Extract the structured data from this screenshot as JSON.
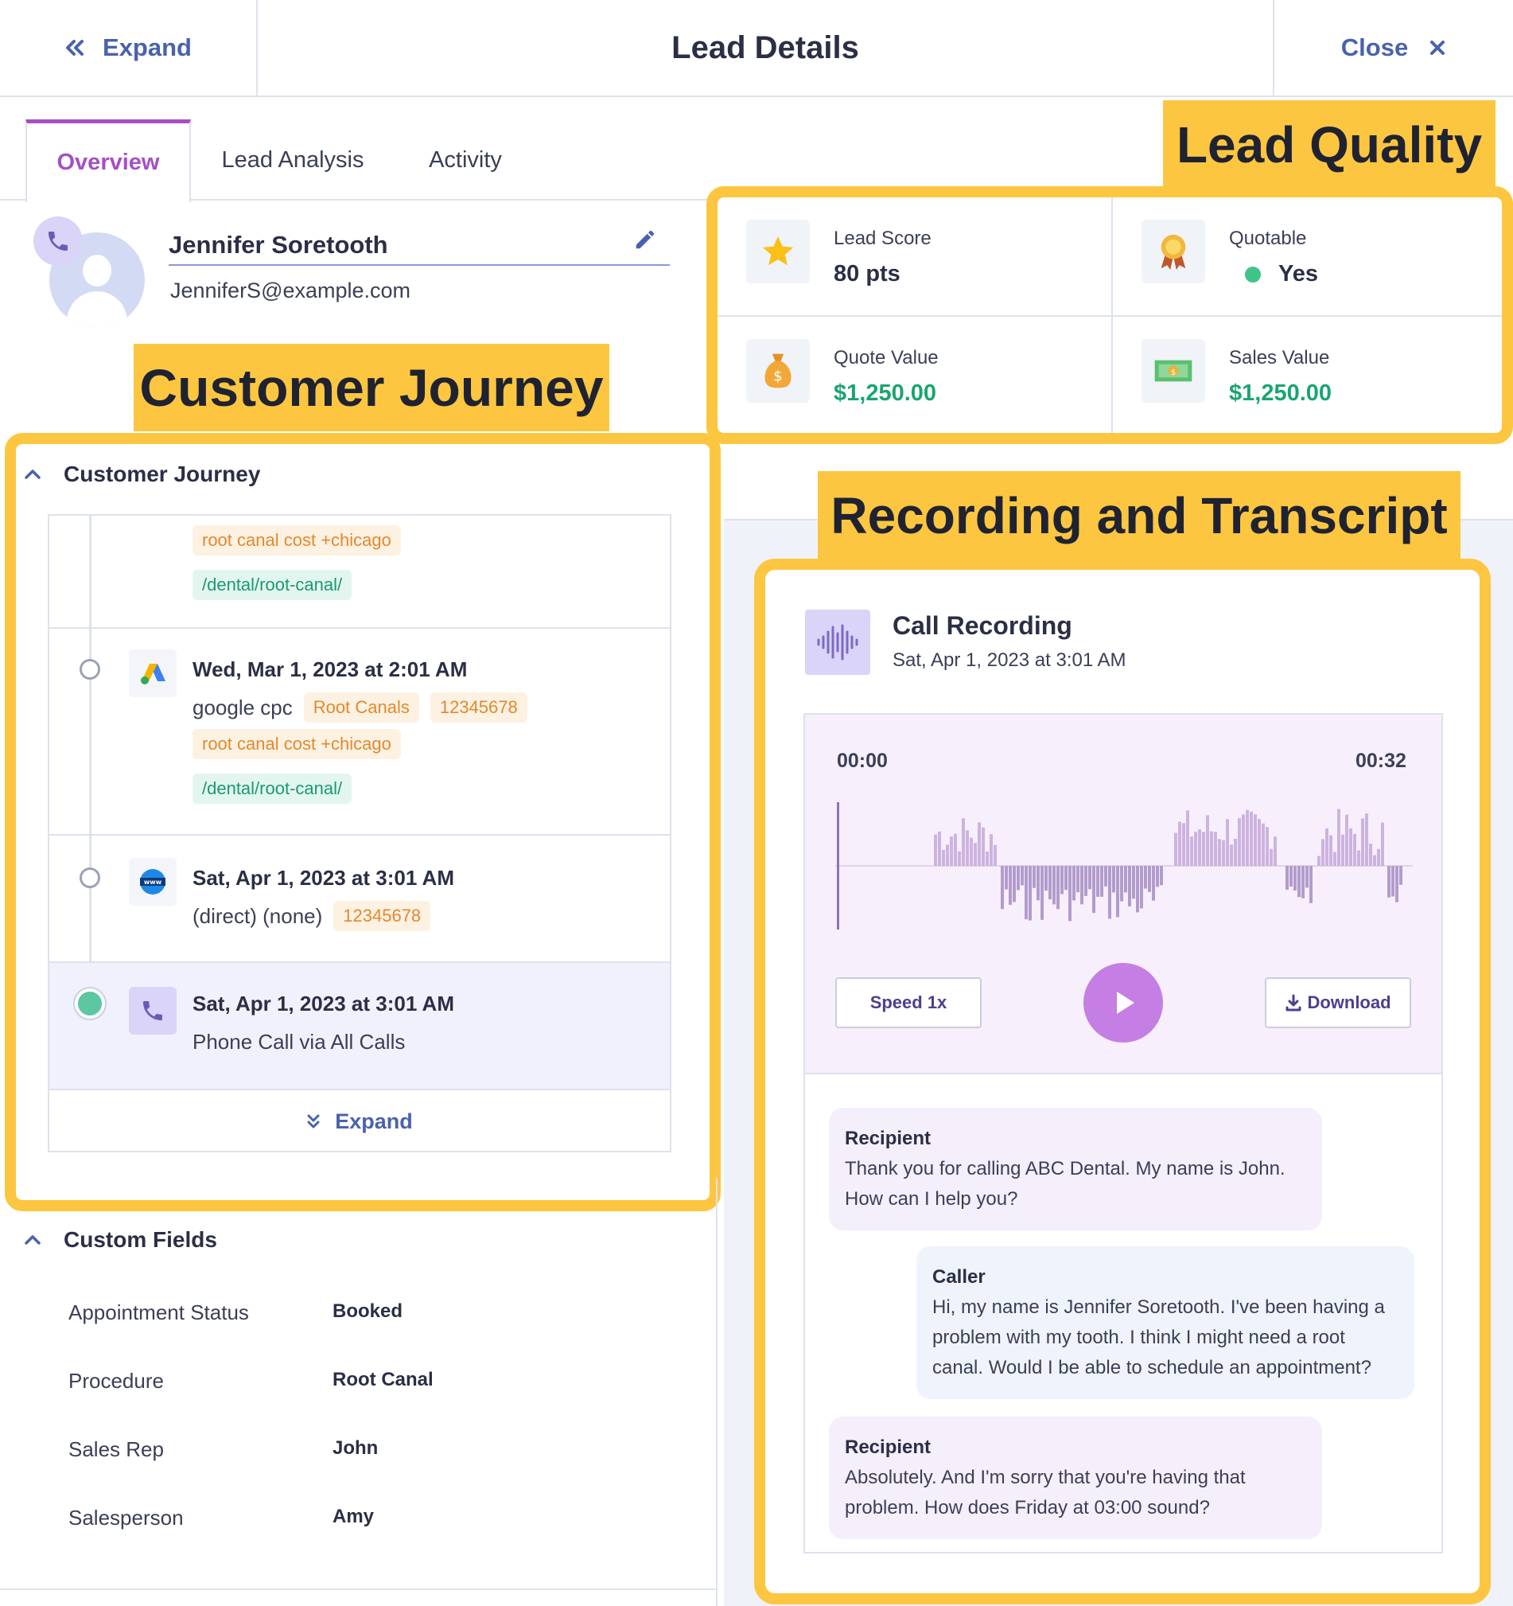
{
  "header": {
    "expand_label": "Expand",
    "title": "Lead Details",
    "close_label": "Close"
  },
  "tabs": [
    {
      "label": "Overview",
      "active": true
    },
    {
      "label": "Lead Analysis",
      "active": false
    },
    {
      "label": "Activity",
      "active": false
    }
  ],
  "contact": {
    "name": "Jennifer Soretooth",
    "email": "JenniferS@example.com"
  },
  "callouts": {
    "journey": "Customer Journey",
    "quality": "Lead Quality",
    "recording": "Recording and Transcript"
  },
  "journey": {
    "title": "Customer Journey",
    "items": [
      {
        "icon": "google-ads-icon",
        "date": "",
        "source": "",
        "tags": [
          "root canal cost +chicago"
        ],
        "url": "/dental/root-canal/"
      },
      {
        "icon": "google-ads-icon",
        "date": "Wed, Mar 1, 2023 at 2:01 AM",
        "source": "google cpc",
        "tags": [
          "Root Canals",
          "12345678",
          "root canal cost +chicago"
        ],
        "url": "/dental/root-canal/"
      },
      {
        "icon": "www-icon",
        "date": "Sat, Apr 1, 2023 at 3:01 AM",
        "source": "(direct) (none)",
        "tags": [
          "12345678"
        ],
        "url": ""
      },
      {
        "icon": "phone-icon",
        "date": "Sat, Apr 1, 2023 at 3:01 AM",
        "source": "Phone Call via All Calls",
        "tags": [],
        "url": ""
      }
    ],
    "expand_label": "Expand"
  },
  "custom_fields": {
    "title": "Custom Fields",
    "rows": [
      {
        "label": "Appointment Status",
        "value": "Booked"
      },
      {
        "label": "Procedure",
        "value": "Root Canal"
      },
      {
        "label": "Sales Rep",
        "value": "John"
      },
      {
        "label": "Salesperson",
        "value": "Amy"
      }
    ]
  },
  "quality": {
    "lead_score": {
      "label": "Lead Score",
      "value": "80 pts",
      "icon": "star-icon"
    },
    "quotable": {
      "label": "Quotable",
      "value": "Yes",
      "icon": "award-ribbon-icon"
    },
    "quote_value": {
      "label": "Quote Value",
      "value": "$1,250.00",
      "icon": "money-bag-icon"
    },
    "sales_value": {
      "label": "Sales Value",
      "value": "$1,250.00",
      "icon": "cash-icon"
    }
  },
  "recording": {
    "title": "Call Recording",
    "date": "Sat, Apr 1, 2023 at 3:01 AM",
    "time_start": "00:00",
    "time_end": "00:32",
    "speed_label": "Speed 1x",
    "download_label": "Download"
  },
  "transcript": [
    {
      "speaker": "Recipient",
      "text": "Thank you for calling ABC Dental. My name is John. How can I help you?"
    },
    {
      "speaker": "Caller",
      "text": "Hi, my name is Jennifer Soretooth. I've been having a problem with my tooth. I think I might need a root canal. Would I be able to schedule an appointment?"
    },
    {
      "speaker": "Recipient",
      "text": "Absolutely. And I'm sorry that you're having that problem. How does Friday at 03:00 sound?"
    }
  ],
  "colors": {
    "accent": "#a64fc4",
    "link": "#4a62ad",
    "highlight": "#fdc641",
    "money": "#1aa56f"
  }
}
